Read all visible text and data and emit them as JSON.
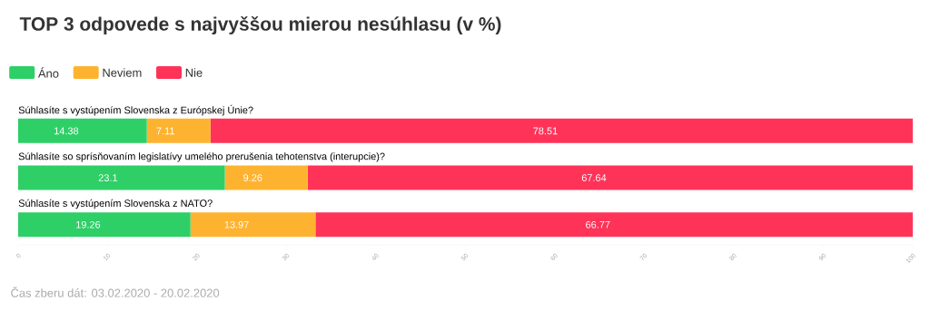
{
  "chart_data": {
    "type": "bar",
    "orientation": "horizontal",
    "stacked": true,
    "data_labels": true,
    "legend": "top left",
    "grid": false,
    "title": "TOP 3 odpovede s najvyššou mierou nesúhlasu (v %)",
    "categories": [
      "Súhlasíte s vystúpením Slovenska z Európskej Únie?",
      "Súhlasíte so sprísňovaním legislatívy umelého prerušenia tehotenstva (interupcie)?",
      "Súhlasíte s vystúpením Slovenska z NATO?"
    ],
    "series": [
      {
        "name": "Áno",
        "color": "#2ecf67",
        "values": [
          14.38,
          23.1,
          19.26
        ]
      },
      {
        "name": "Neviem",
        "color": "#feb330",
        "values": [
          7.11,
          9.26,
          13.97
        ]
      },
      {
        "name": "Nie",
        "color": "#ff3358",
        "values": [
          78.51,
          67.64,
          66.77
        ]
      }
    ],
    "xlim": [
      0,
      100
    ],
    "xticks": [
      0,
      10,
      20,
      30,
      40,
      50,
      60,
      70,
      80,
      90,
      100
    ],
    "annotations": [
      "Čas zberu dát: 03.02.2020 - 20.02.2020"
    ]
  }
}
